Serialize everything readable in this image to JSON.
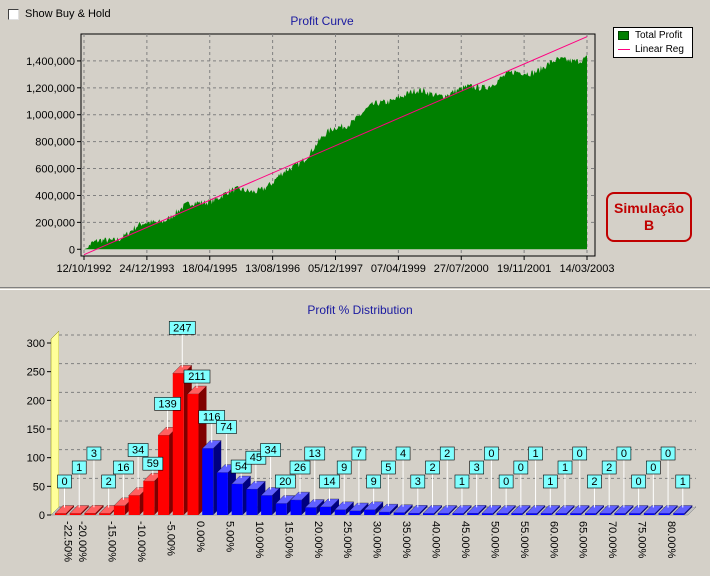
{
  "controls": {
    "show_buy_hold_label": "Show Buy & Hold"
  },
  "profit_curve": {
    "title": "Profit Curve",
    "legend": {
      "total_profit": "Total Profit",
      "linear_reg": "Linear Reg"
    },
    "stamp": {
      "line1": "Simulação",
      "line2": "B"
    }
  },
  "distribution": {
    "title": "Profit % Distribution"
  },
  "colors": {
    "area_fill": "#008000",
    "regression_line": "#ff0080",
    "negative_bar": "#ff0000",
    "positive_bar": "#0000ff",
    "label_box": "#80ffff",
    "stamp": "#c00000"
  },
  "chart_data": [
    {
      "type": "area",
      "title": "Profit Curve",
      "series": [
        {
          "name": "Total Profit",
          "x": [
            "12/10/1992",
            "24/12/1993",
            "18/04/1995",
            "13/08/1996",
            "05/12/1997",
            "07/04/1999",
            "27/07/2000",
            "19/11/2001",
            "14/03/2003"
          ],
          "values": [
            0,
            180000,
            380000,
            480000,
            900000,
            1150000,
            1170000,
            1320000,
            1440000
          ]
        },
        {
          "name": "Linear Reg",
          "x": [
            "12/10/1992",
            "14/03/2003"
          ],
          "values": [
            -40000,
            1580000
          ]
        }
      ],
      "x_tick_labels": [
        "12/10/1992",
        "24/12/1993",
        "18/04/1995",
        "13/08/1996",
        "05/12/1997",
        "07/04/1999",
        "27/07/2000",
        "19/11/2001",
        "14/03/2003"
      ],
      "y_tick_labels": [
        "0",
        "200,000",
        "400,000",
        "600,000",
        "800,000",
        "1,000,000",
        "1,200,000",
        "1,400,000"
      ],
      "ylim": [
        -50000,
        1600000
      ],
      "grid": true,
      "legend_position": "top-right"
    },
    {
      "type": "bar",
      "title": "Profit % Distribution",
      "categories": [
        "-22.50%",
        "-20.00%",
        "-17.50%",
        "-15.00%",
        "-12.50%",
        "-10.00%",
        "-7.50%",
        "-5.00%",
        "-2.50%",
        "0.00%",
        "2.50%",
        "5.00%",
        "7.50%",
        "10.00%",
        "12.50%",
        "15.00%",
        "17.50%",
        "20.00%",
        "22.50%",
        "25.00%",
        "27.50%",
        "30.00%",
        "32.50%",
        "35.00%",
        "37.50%",
        "40.00%",
        "42.50%",
        "45.00%",
        "47.50%",
        "50.00%",
        "52.50%",
        "55.00%",
        "57.50%",
        "60.00%",
        "62.50%",
        "65.00%",
        "67.50%",
        "70.00%",
        "72.50%",
        "75.00%",
        "77.50%",
        "80.00%",
        "82.50%"
      ],
      "values": [
        0,
        1,
        3,
        2,
        16,
        34,
        59,
        139,
        247,
        211,
        116,
        74,
        54,
        45,
        34,
        20,
        26,
        13,
        14,
        9,
        7,
        9,
        5,
        4,
        3,
        2,
        2,
        1,
        3,
        0,
        0,
        0,
        1,
        1,
        1,
        0,
        2,
        2,
        0,
        0,
        0,
        0,
        1
      ],
      "x_tick_labels": [
        "-22.50%",
        "-20.00%",
        "-15.00%",
        "-10.00%",
        "-5.00%",
        "0.00%",
        "5.00%",
        "10.00%",
        "15.00%",
        "20.00%",
        "25.00%",
        "30.00%",
        "35.00%",
        "40.00%",
        "45.00%",
        "50.00%",
        "55.00%",
        "60.00%",
        "65.00%",
        "70.00%",
        "75.00%",
        "80.00%"
      ],
      "y_tick_labels": [
        "0",
        "50",
        "100",
        "150",
        "200",
        "250",
        "300"
      ],
      "ylim": [
        0,
        300
      ],
      "grid": true
    }
  ]
}
